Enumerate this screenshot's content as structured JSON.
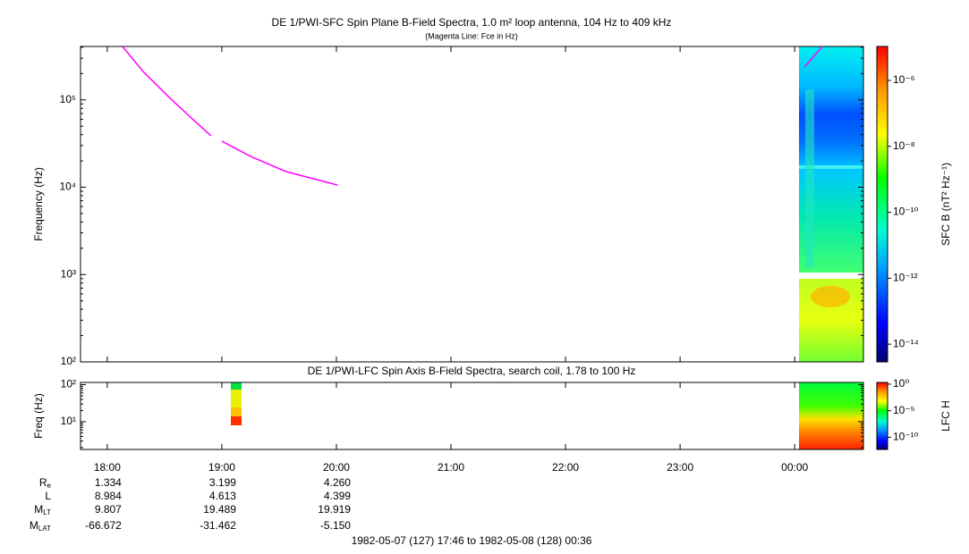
{
  "chart_data": [
    {
      "type": "spectrogram",
      "title": "DE 1/PWI-SFC  Spin Plane B-Field Spectra, 1.0 m² loop antenna, 104 Hz to 409 kHz",
      "subtitle": "(Magenta Line: Fce in Hz)",
      "y_label": "Frequency (Hz)",
      "log_y": true,
      "ylim": [
        100,
        409000
      ],
      "yticks": [
        {
          "value": 100,
          "label": "10²"
        },
        {
          "value": 1000,
          "label": "10³"
        },
        {
          "value": 10000,
          "label": "10⁴"
        },
        {
          "value": 100000,
          "label": "10⁵"
        }
      ],
      "xlim": [
        17.7667,
        24.6
      ],
      "xticks": [
        {
          "value": 18,
          "label": "18:00"
        },
        {
          "value": 19,
          "label": "19:00"
        },
        {
          "value": 20,
          "label": "20:00"
        },
        {
          "value": 21,
          "label": "21:00"
        },
        {
          "value": 22,
          "label": "22:00"
        },
        {
          "value": 23,
          "label": "23:00"
        },
        {
          "value": 24,
          "label": "00:00"
        }
      ],
      "x": [
        18.133,
        18.312,
        18.546,
        18.741,
        18.905,
        18.95,
        19.0,
        19.25,
        19.56,
        20.01,
        22.0,
        24.086,
        24.242
      ],
      "series": [
        {
          "color": "#ff00ff",
          "values": [
            409000,
            212000,
            105000,
            60800,
            38900,
            null,
            33700,
            22600,
            15100,
            10600,
            null,
            239000,
            409000
          ]
        }
      ],
      "colorbar": {
        "label": "SFC B (nT² Hz⁻¹)",
        "log": true,
        "zlim": [
          2.9e-15,
          1.07e-05
        ],
        "zticks": [
          {
            "value": 1e-14,
            "label": "10⁻¹⁴"
          },
          {
            "value": 1e-12,
            "label": "10⁻¹²"
          },
          {
            "value": 1e-10,
            "label": "10⁻¹⁰"
          },
          {
            "value": 1e-08,
            "label": "10⁻⁸"
          },
          {
            "value": 1e-06,
            "label": "10⁻⁶"
          }
        ]
      }
    },
    {
      "type": "spectrogram",
      "title": "DE 1/PWI-LFC  Spin Axis B-Field Spectra, search coil, 1.78 to 100 Hz",
      "y_label": "Freq (Hz)",
      "log_y": true,
      "ylim": [
        1.78,
        115
      ],
      "yticks": [
        {
          "value": 10,
          "label": "10¹"
        },
        {
          "value": 100,
          "label": "10²"
        }
      ],
      "xlim": [
        17.7667,
        24.6
      ],
      "xticks": [
        {
          "value": 18,
          "label": "18:00"
        },
        {
          "value": 19,
          "label": "19:00"
        },
        {
          "value": 20,
          "label": "20:00"
        },
        {
          "value": 21,
          "label": "21:00"
        },
        {
          "value": 22,
          "label": "22:00"
        },
        {
          "value": 23,
          "label": "23:00"
        },
        {
          "value": 24,
          "label": "00:00"
        }
      ],
      "colorbar": {
        "label": "LFC H",
        "log": true,
        "zlim": [
          5e-13,
          2.1
        ],
        "zticks": [
          {
            "value": 1e-10,
            "label": "10⁻¹⁰"
          },
          {
            "value": 1e-05,
            "label": "10⁻⁵"
          },
          {
            "value": 1,
            "label": "10⁰"
          }
        ]
      }
    }
  ],
  "ephemeris": {
    "labels": [
      {
        "text": "R",
        "sub": "e"
      },
      {
        "text": "L"
      },
      {
        "text": "M",
        "sub": "LT"
      },
      {
        "text": "M",
        "sub": "LAT"
      }
    ],
    "rows": [
      [
        "1.334",
        "3.199",
        "4.260"
      ],
      [
        "8.984",
        "4.613",
        "4.399"
      ],
      [
        "9.807",
        "19.489",
        "19.919"
      ],
      [
        "-66.672",
        "-31.462",
        "-5.150"
      ]
    ]
  },
  "footer": "1982-05-07 (127) 17:46 to 1982-05-08 (128) 00:36"
}
